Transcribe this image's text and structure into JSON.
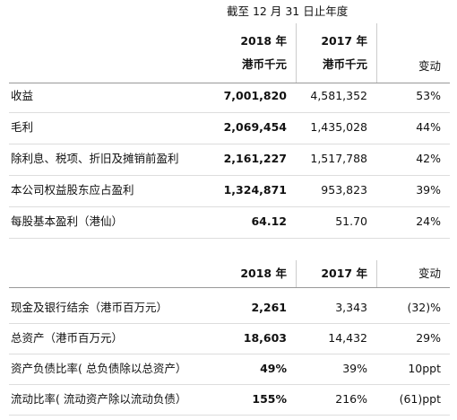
{
  "header": {
    "period": "截至 12 月 31 日止年度"
  },
  "table1": {
    "columns": [
      {
        "year": "2018 年",
        "unit": "港币千元"
      },
      {
        "year": "2017 年",
        "unit": "港币千元"
      },
      {
        "label": "变动"
      }
    ],
    "rows": [
      [
        "收益",
        "7,001,820",
        "4,581,352",
        "53%"
      ],
      [
        "毛利",
        "2,069,454",
        "1,435,028",
        "44%"
      ],
      [
        "除利息、税项、折旧及摊销前盈利",
        "2,161,227",
        "1,517,788",
        "42%"
      ],
      [
        "本公司权益股东应占盈利",
        "1,324,871",
        "953,823",
        "39%"
      ],
      [
        "每股基本盈利（港仙）",
        "64.12",
        "51.70",
        "24%"
      ]
    ]
  },
  "table2": {
    "columns": [
      "2018 年",
      "2017 年",
      "变动"
    ],
    "rows": [
      [
        "现金及银行结余（港币百万元）",
        "2,261",
        "3,343",
        "(32)%"
      ],
      [
        "总资产（港币百万元）",
        "18,603",
        "14,432",
        "29%"
      ],
      [
        "资产负债比率( 总负债除以总资产）",
        "49%",
        "39%",
        "10ppt"
      ],
      [
        "流动比率( 流动资产除以流动负债）",
        "155%",
        "216%",
        "(61)ppt"
      ]
    ]
  }
}
